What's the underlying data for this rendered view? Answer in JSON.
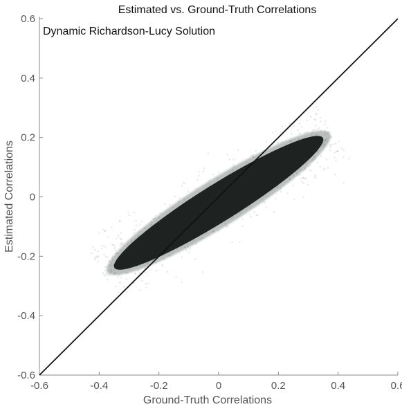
{
  "chart_data": {
    "type": "scatter",
    "title": "Estimated vs. Ground-Truth Correlations",
    "annotation": "Dynamic Richardson-Lucy Solution",
    "xlabel": "Ground-Truth Correlations",
    "ylabel": "Estimated Correlations",
    "xlim": [
      -0.6,
      0.6
    ],
    "ylim": [
      -0.6,
      0.6
    ],
    "xticks": [
      "-0.6",
      "-0.4",
      "-0.2",
      "0",
      "0.2",
      "0.4",
      "0.6"
    ],
    "yticks": [
      "-0.6",
      "-0.4",
      "-0.2",
      "0",
      "0.2",
      "0.4",
      "0.6"
    ],
    "grid": false,
    "reference_line": {
      "x": [
        -0.6,
        0.6
      ],
      "y": [
        -0.6,
        0.6
      ]
    },
    "point_cloud": {
      "x_range": [
        -0.35,
        0.35
      ],
      "y_range": [
        -0.25,
        0.22
      ],
      "center": [
        0.0,
        -0.02
      ],
      "fit_slope": 0.62,
      "color": "#1e2220"
    },
    "colors": {
      "points": "#1e2220",
      "line": "#111111",
      "axis": "#888888"
    }
  }
}
